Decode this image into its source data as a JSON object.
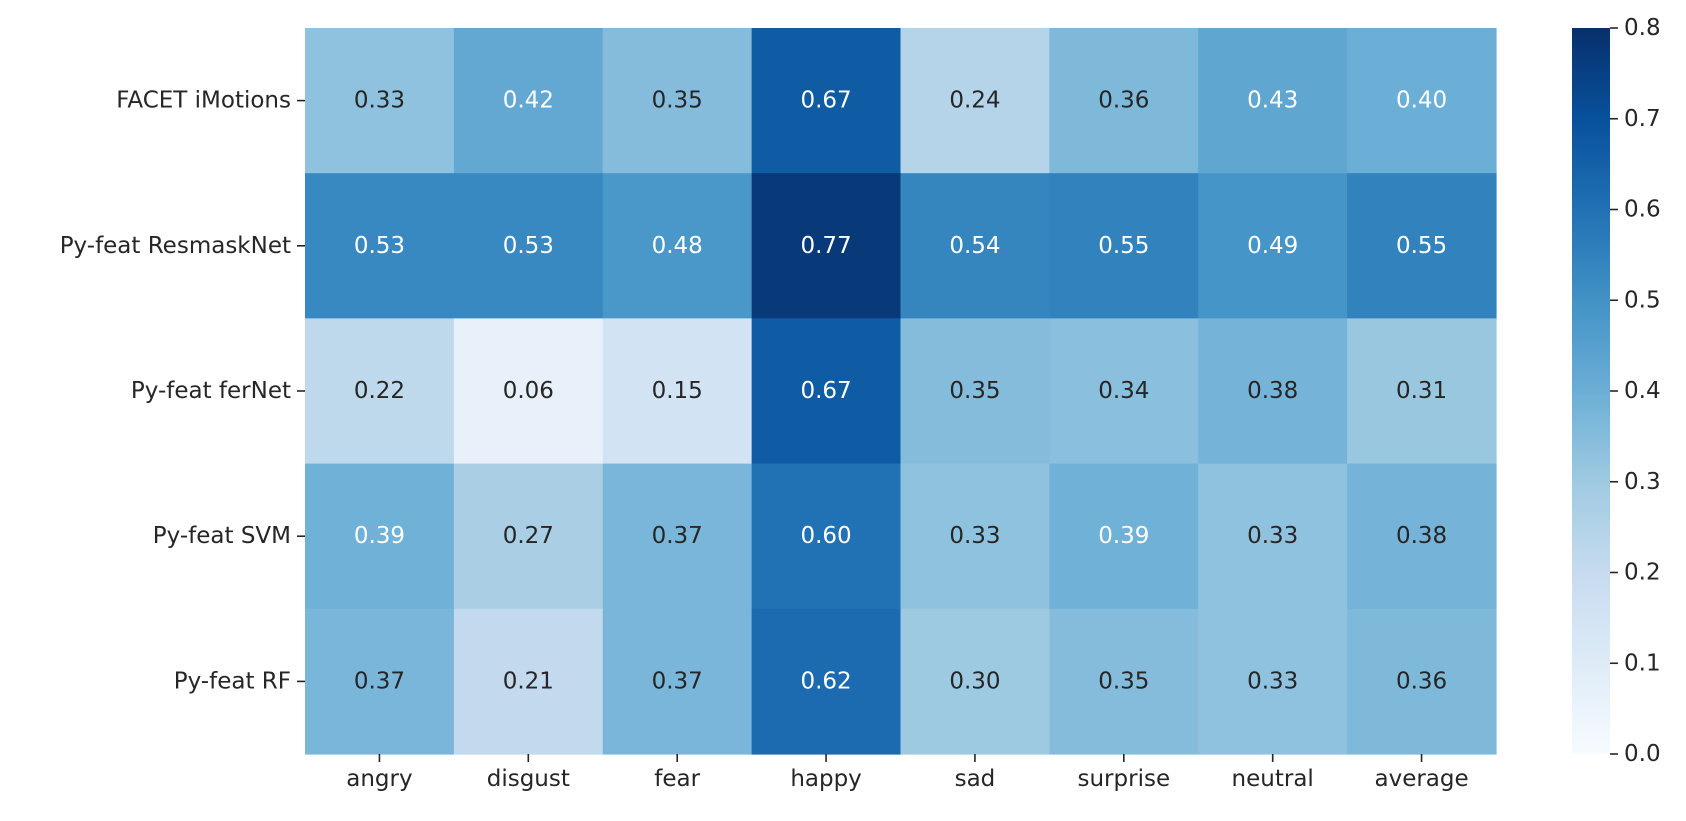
{
  "chart_data": {
    "type": "heatmap",
    "title": "",
    "xlabel": "",
    "ylabel": "",
    "x_categories": [
      "angry",
      "disgust",
      "fear",
      "happy",
      "sad",
      "surprise",
      "neutral",
      "average"
    ],
    "y_categories": [
      "FACET iMotions",
      "Py-feat ResmaskNet",
      "Py-feat ferNet",
      "Py-feat SVM",
      "Py-feat RF"
    ],
    "values": [
      [
        0.33,
        0.42,
        0.35,
        0.67,
        0.24,
        0.36,
        0.43,
        0.4
      ],
      [
        0.53,
        0.53,
        0.48,
        0.77,
        0.54,
        0.55,
        0.49,
        0.55
      ],
      [
        0.22,
        0.06,
        0.15,
        0.67,
        0.35,
        0.34,
        0.38,
        0.31
      ],
      [
        0.39,
        0.27,
        0.37,
        0.6,
        0.33,
        0.39,
        0.33,
        0.38
      ],
      [
        0.37,
        0.21,
        0.37,
        0.62,
        0.3,
        0.35,
        0.33,
        0.36
      ]
    ],
    "value_labels": [
      [
        "0.33",
        "0.42",
        "0.35",
        "0.67",
        "0.24",
        "0.36",
        "0.43",
        "0.40"
      ],
      [
        "0.53",
        "0.53",
        "0.48",
        "0.77",
        "0.54",
        "0.55",
        "0.49",
        "0.55"
      ],
      [
        "0.22",
        "0.06",
        "0.15",
        "0.67",
        "0.35",
        "0.34",
        "0.38",
        "0.31"
      ],
      [
        "0.39",
        "0.27",
        "0.37",
        "0.60",
        "0.33",
        "0.39",
        "0.33",
        "0.38"
      ],
      [
        "0.37",
        "0.21",
        "0.37",
        "0.62",
        "0.30",
        "0.35",
        "0.33",
        "0.36"
      ]
    ],
    "colorbar": {
      "range": [
        0.0,
        0.8
      ],
      "ticks": [
        0.0,
        0.1,
        0.2,
        0.3,
        0.4,
        0.5,
        0.6,
        0.7,
        0.8
      ],
      "tick_labels": [
        "0.0",
        "0.1",
        "0.2",
        "0.3",
        "0.4",
        "0.5",
        "0.6",
        "0.7",
        "0.8"
      ],
      "colormap": "Blues",
      "colormap_stops": [
        "#f7fbff",
        "#deebf7",
        "#c6dbef",
        "#9ecae1",
        "#6baed6",
        "#4292c6",
        "#2171b5",
        "#08519c",
        "#08306b"
      ]
    },
    "annotation_colors": {
      "dark": "#262626",
      "light": "#ffffff"
    },
    "grid": false,
    "legend": "colorbar-right"
  }
}
